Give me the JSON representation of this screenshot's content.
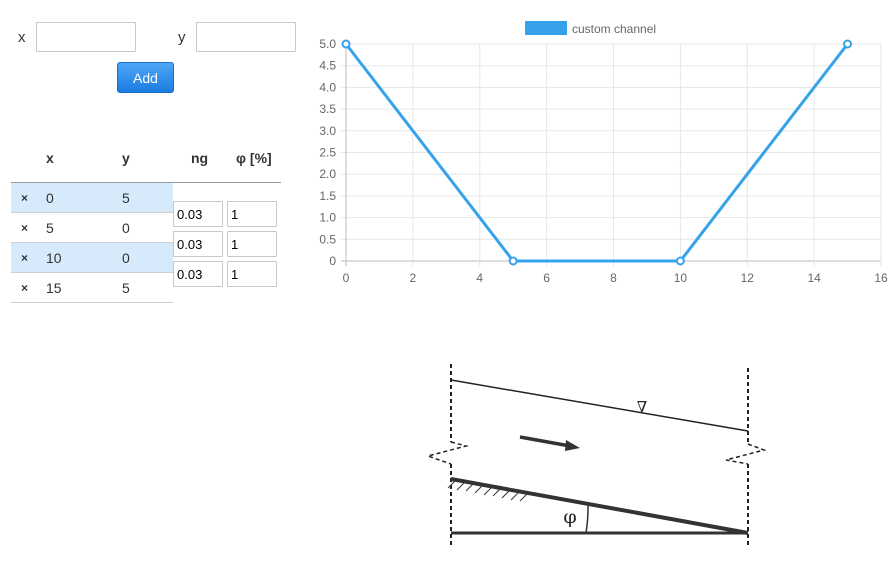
{
  "form": {
    "x_label": "x",
    "y_label": "y",
    "x_value": "",
    "y_value": "",
    "add_label": "Add"
  },
  "table": {
    "headers": {
      "x": "x",
      "y": "y",
      "ng": "ng",
      "phi": "φ [%]"
    },
    "delete_glyph": "×",
    "points": [
      {
        "x": "0",
        "y": "5"
      },
      {
        "x": "5",
        "y": "0"
      },
      {
        "x": "10",
        "y": "0"
      },
      {
        "x": "15",
        "y": "5"
      }
    ],
    "segments": [
      {
        "ng": "0.03",
        "phi": "1"
      },
      {
        "ng": "0.03",
        "phi": "1"
      },
      {
        "ng": "0.03",
        "phi": "1"
      }
    ]
  },
  "chart_data": {
    "type": "line",
    "series": [
      {
        "name": "custom channel",
        "color": "#36a2eb",
        "x": [
          0,
          5,
          10,
          15
        ],
        "y": [
          5,
          0,
          0,
          5
        ]
      }
    ],
    "xlim": [
      0,
      16
    ],
    "ylim": [
      0,
      5
    ],
    "x_ticks": [
      "0",
      "2",
      "4",
      "6",
      "8",
      "10",
      "12",
      "14",
      "16"
    ],
    "y_ticks": [
      "0",
      "0.5",
      "1.0",
      "1.5",
      "2.0",
      "2.5",
      "3.0",
      "3.5",
      "4.0",
      "4.5",
      "5.0"
    ],
    "grid": true,
    "legend_position": "top-center"
  },
  "diagram": {
    "angle_symbol": "φ",
    "water_surface_symbol": "∇"
  }
}
